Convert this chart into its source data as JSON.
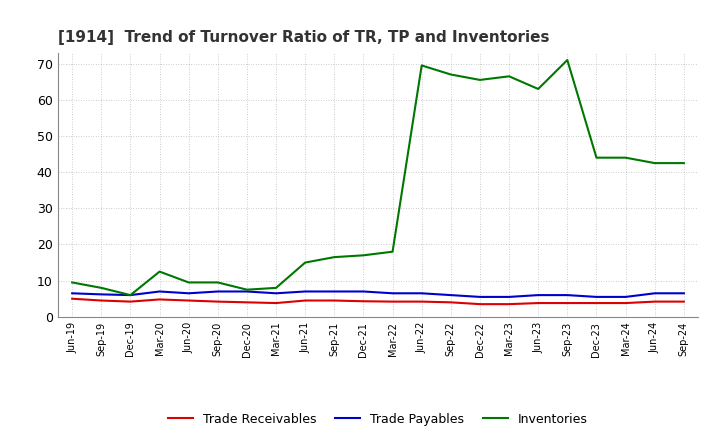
{
  "title": "[1914]  Trend of Turnover Ratio of TR, TP and Inventories",
  "x_labels": [
    "Jun-19",
    "Sep-19",
    "Dec-19",
    "Mar-20",
    "Jun-20",
    "Sep-20",
    "Dec-20",
    "Mar-21",
    "Jun-21",
    "Sep-21",
    "Dec-21",
    "Mar-22",
    "Jun-22",
    "Sep-22",
    "Dec-22",
    "Mar-23",
    "Jun-23",
    "Sep-23",
    "Dec-23",
    "Mar-24",
    "Jun-24",
    "Sep-24"
  ],
  "trade_receivables": [
    5.0,
    4.5,
    4.2,
    4.8,
    4.5,
    4.2,
    4.0,
    3.8,
    4.5,
    4.5,
    4.3,
    4.2,
    4.2,
    4.0,
    3.5,
    3.5,
    3.8,
    3.8,
    3.8,
    3.8,
    4.2,
    4.2
  ],
  "trade_payables": [
    6.5,
    6.2,
    6.0,
    7.0,
    6.5,
    7.0,
    7.0,
    6.5,
    7.0,
    7.0,
    7.0,
    6.5,
    6.5,
    6.0,
    5.5,
    5.5,
    6.0,
    6.0,
    5.5,
    5.5,
    6.5,
    6.5
  ],
  "inventories": [
    9.5,
    8.0,
    6.0,
    12.5,
    9.5,
    9.5,
    7.5,
    8.0,
    15.0,
    16.5,
    17.0,
    18.0,
    69.5,
    67.0,
    65.5,
    66.5,
    63.0,
    71.0,
    44.0,
    44.0,
    42.5,
    42.5
  ],
  "tr_color": "#dd0000",
  "tp_color": "#0000cc",
  "inv_color": "#007700",
  "ylim": [
    0,
    73
  ],
  "yticks": [
    0,
    10,
    20,
    30,
    40,
    50,
    60,
    70
  ],
  "ytick_labels": [
    "0",
    "10",
    "20",
    "30",
    "40",
    "50",
    "60",
    "70"
  ],
  "legend_labels": [
    "Trade Receivables",
    "Trade Payables",
    "Inventories"
  ],
  "background_color": "#ffffff",
  "grid_color": "#bbbbbb"
}
